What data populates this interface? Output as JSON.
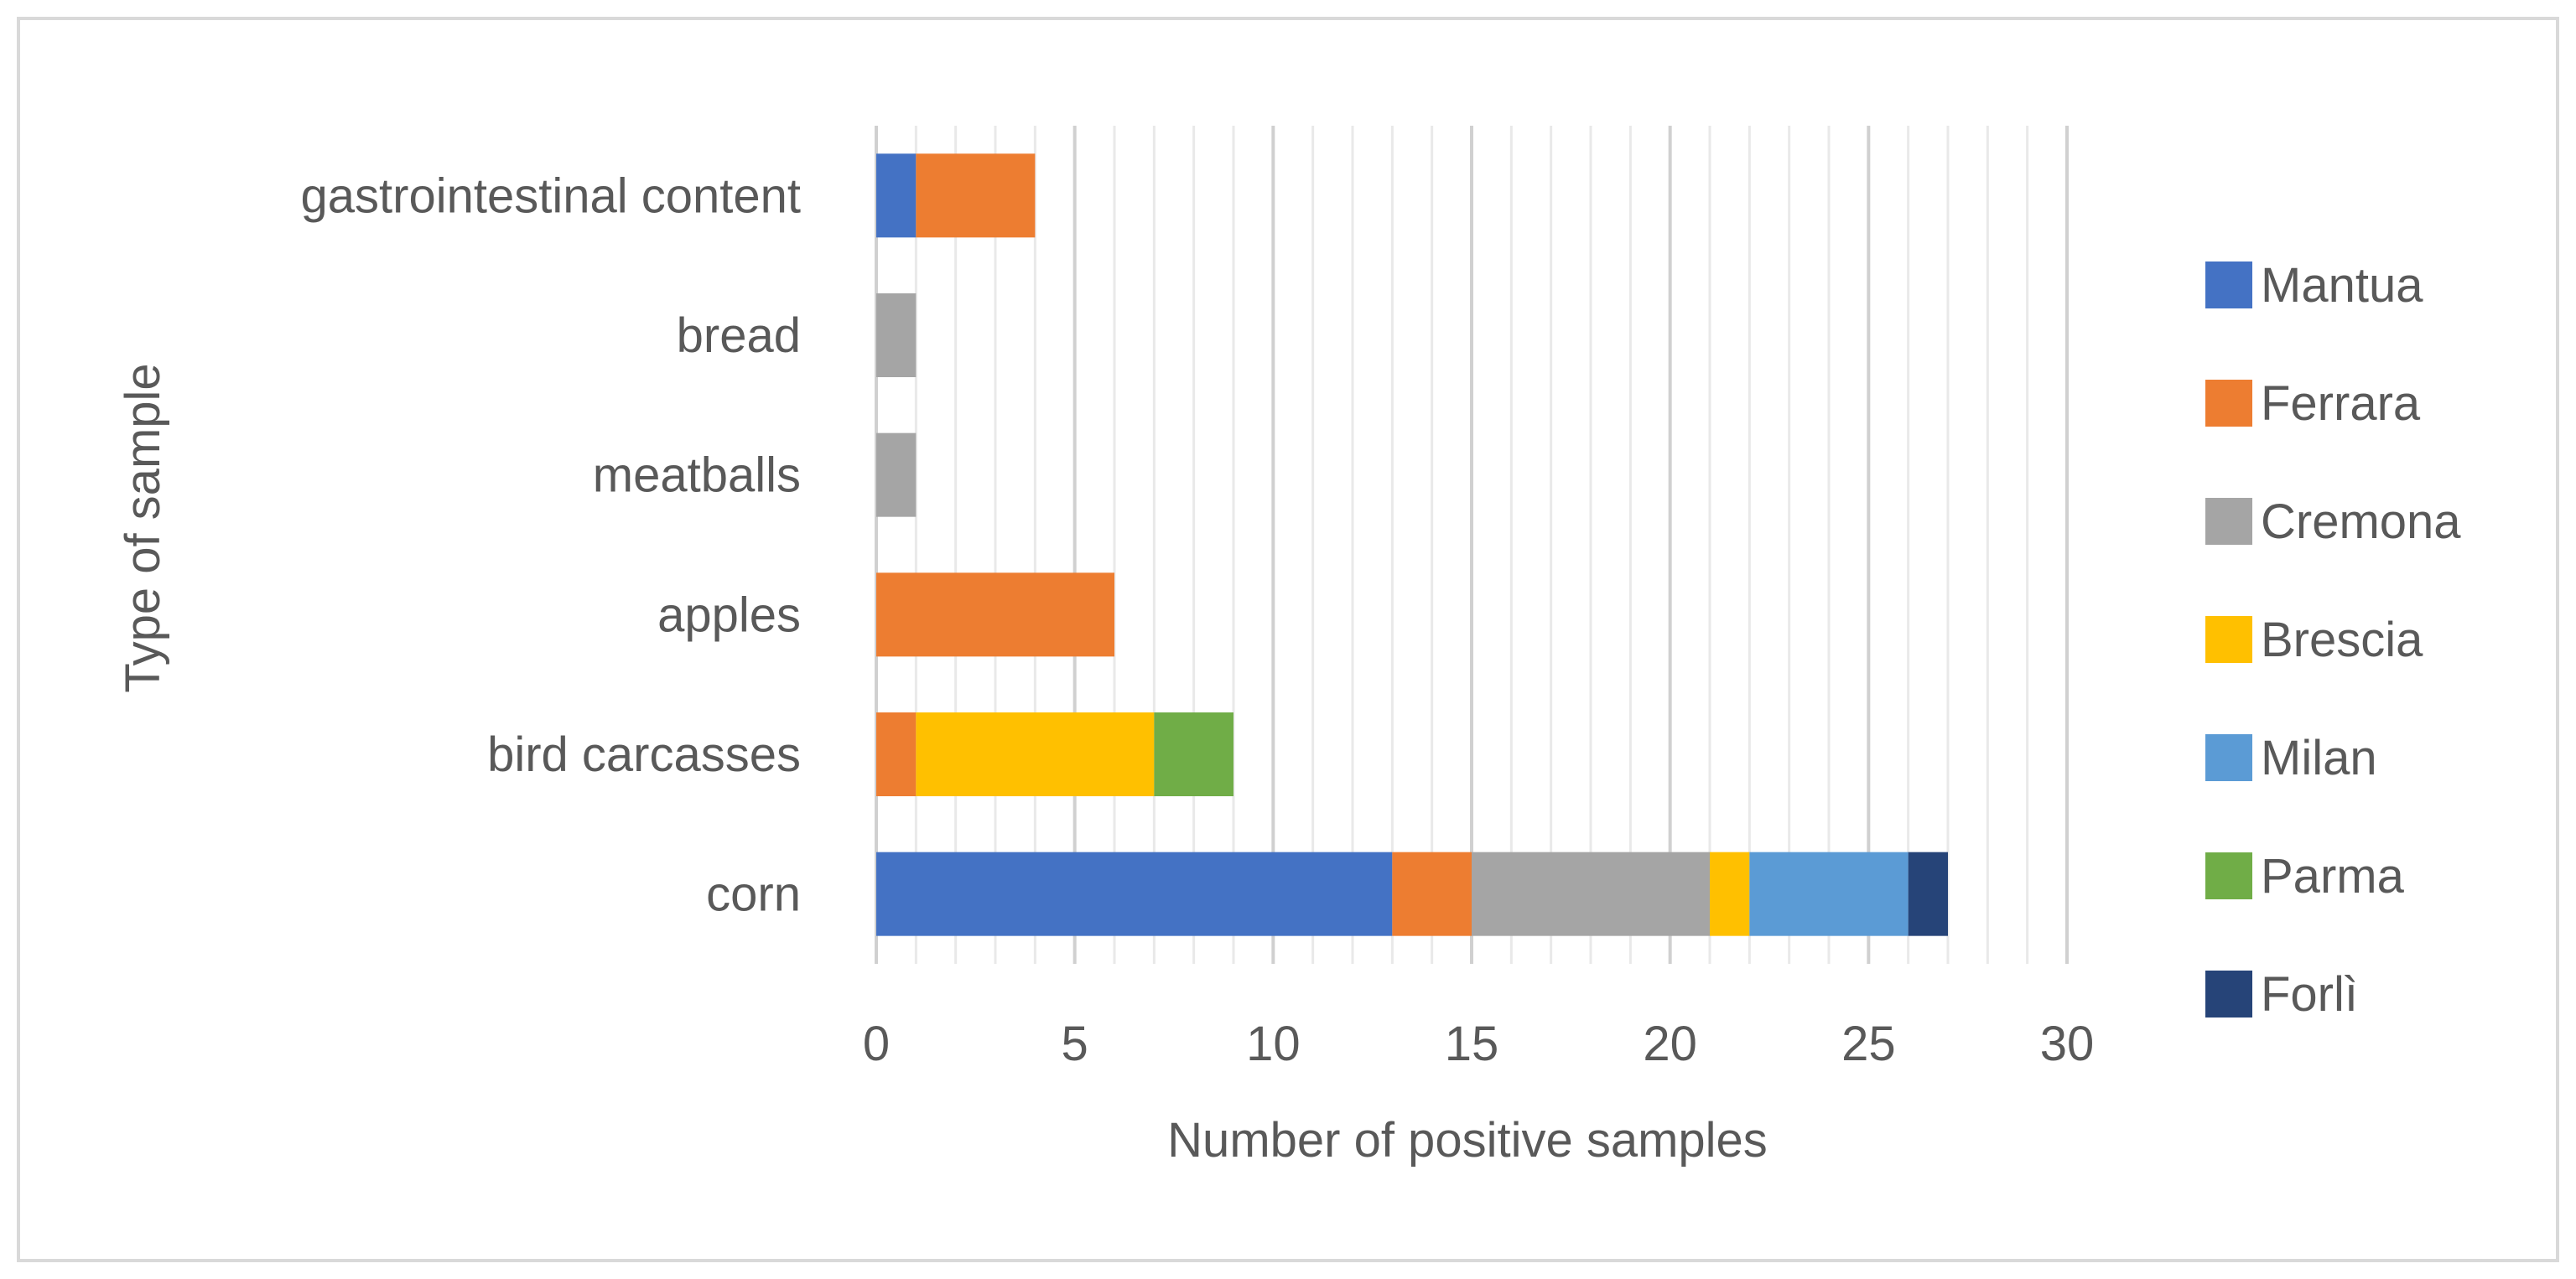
{
  "chart_data": {
    "type": "bar",
    "orientation": "horizontal",
    "stacked": true,
    "title": "",
    "xlabel": "Number of positive samples",
    "ylabel": "Type of sample",
    "xlim": [
      0,
      30
    ],
    "x_ticks": [
      0,
      5,
      10,
      15,
      20,
      25,
      30
    ],
    "x_tick_labels": [
      "0",
      "5",
      "10",
      "15",
      "20",
      "25",
      "30"
    ],
    "grid": "vertical major and minor gridlines",
    "legend_position": "right",
    "categories": [
      "corn",
      "bird carcasses",
      "apples",
      "meatballs",
      "bread",
      "gastrointestinal content"
    ],
    "series": [
      {
        "name": "Mantua",
        "color": "#4472c4",
        "values": [
          13,
          0,
          0,
          0,
          0,
          1
        ]
      },
      {
        "name": "Ferrara",
        "color": "#ed7d31",
        "values": [
          2,
          1,
          6,
          0,
          0,
          3
        ]
      },
      {
        "name": "Cremona",
        "color": "#a5a5a5",
        "values": [
          6,
          0,
          0,
          1,
          1,
          0
        ]
      },
      {
        "name": "Brescia",
        "color": "#ffc000",
        "values": [
          1,
          6,
          0,
          0,
          0,
          0
        ]
      },
      {
        "name": "Milan",
        "color": "#5b9bd5",
        "values": [
          4,
          0,
          0,
          0,
          0,
          0
        ]
      },
      {
        "name": "Parma",
        "color": "#70ad47",
        "values": [
          0,
          2,
          0,
          0,
          0,
          0
        ]
      },
      {
        "name": "Forlì",
        "color": "#264478",
        "values": [
          1,
          0,
          0,
          0,
          0,
          0
        ]
      }
    ]
  }
}
